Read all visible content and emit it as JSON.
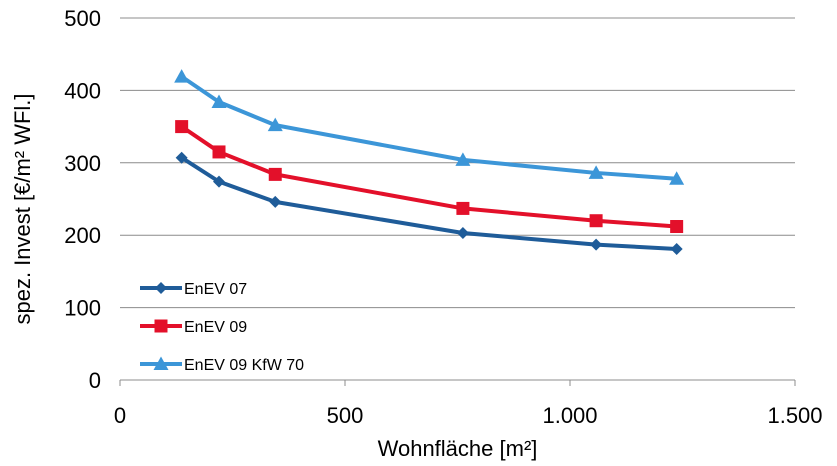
{
  "chart_data": {
    "type": "line",
    "title": "",
    "xlabel": "Wohnfläche [m²]",
    "ylabel": "spez. Invest [€/m² WFl.]",
    "xlim": [
      0,
      1500
    ],
    "ylim": [
      0,
      500
    ],
    "x_ticks": [
      0,
      500,
      1000,
      1500
    ],
    "x_tick_labels": [
      "0",
      "500",
      "1.000",
      "1.500"
    ],
    "y_ticks": [
      0,
      100,
      200,
      300,
      400,
      500
    ],
    "y_tick_labels": [
      "0",
      "100",
      "200",
      "300",
      "400",
      "500"
    ],
    "grid": "horizontal",
    "legend_position": "bottom-left",
    "series": [
      {
        "name": "EnEV 07",
        "color": "#1F5C99",
        "marker": "diamond",
        "x": [
          137,
          220,
          345,
          762,
          1058,
          1237
        ],
        "y": [
          307,
          274,
          246,
          203,
          187,
          181
        ]
      },
      {
        "name": "EnEV 09",
        "color": "#E3102A",
        "marker": "square",
        "x": [
          137,
          220,
          345,
          762,
          1058,
          1237
        ],
        "y": [
          350,
          315,
          284,
          237,
          220,
          212
        ]
      },
      {
        "name": "EnEV 09 KfW 70",
        "color": "#3C96D8",
        "marker": "triangle",
        "x": [
          137,
          220,
          345,
          762,
          1058,
          1237
        ],
        "y": [
          419,
          384,
          352,
          304,
          286,
          278
        ]
      }
    ]
  }
}
